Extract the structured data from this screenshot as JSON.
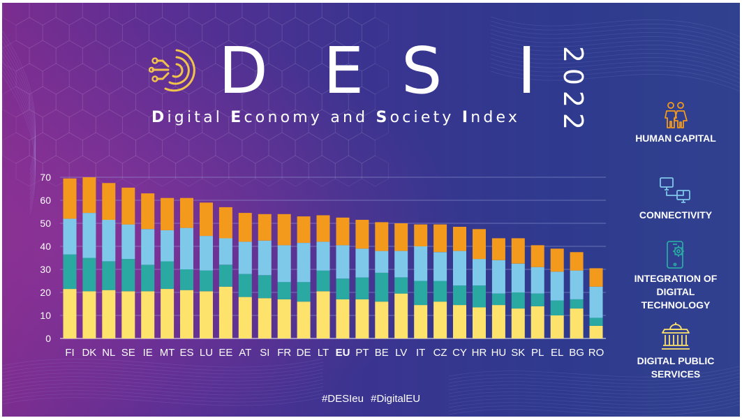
{
  "brand": {
    "logo_letters": [
      "D",
      "E",
      "S",
      "I"
    ],
    "subtitle_parts": [
      {
        "initial": "D",
        "rest": "igital "
      },
      {
        "initial": "E",
        "rest": "conomy and "
      },
      {
        "initial": "S",
        "rest": "ociety "
      },
      {
        "initial": "I",
        "rest": "ndex"
      }
    ],
    "year_digits": [
      "2",
      "0",
      "2",
      "2"
    ],
    "accent_gold": "#f1c34b",
    "logo_icon": "circuit-rings-icon"
  },
  "chart_data": {
    "type": "bar",
    "stacked": true,
    "title": "",
    "xlabel": "",
    "ylabel": "",
    "ylim": [
      0,
      70
    ],
    "yticks": [
      0,
      10,
      20,
      30,
      40,
      50,
      60,
      70
    ],
    "grid": true,
    "legend_position": "right",
    "highlight_category": "EU",
    "categories": [
      "FI",
      "DK",
      "NL",
      "SE",
      "IE",
      "MT",
      "ES",
      "LU",
      "EE",
      "AT",
      "SI",
      "FR",
      "DE",
      "LT",
      "EU",
      "PT",
      "BE",
      "LV",
      "IT",
      "CZ",
      "CY",
      "HR",
      "HU",
      "SK",
      "PL",
      "EL",
      "BG",
      "RO"
    ],
    "series": [
      {
        "name": "HUMAN CAPITAL",
        "color": "#fde26b",
        "values": [
          21.5,
          20.5,
          21.0,
          20.5,
          20.5,
          21.5,
          21.0,
          20.5,
          22.5,
          18.0,
          17.5,
          17.0,
          16.0,
          20.5,
          17.0,
          17.0,
          16.0,
          19.5,
          14.5,
          16.0,
          14.5,
          13.5,
          14.5,
          13.0,
          14.0,
          10.0,
          13.0,
          5.5
        ]
      },
      {
        "name": "CONNECTIVITY",
        "color": "#2aa8a2",
        "values": [
          15.0,
          14.5,
          12.5,
          14.0,
          11.5,
          12.0,
          9.0,
          9.0,
          9.5,
          10.0,
          10.0,
          7.5,
          8.5,
          9.0,
          9.0,
          9.5,
          12.5,
          7.0,
          10.5,
          9.0,
          8.5,
          9.5,
          5.0,
          7.0,
          5.5,
          6.5,
          4.0,
          3.5
        ]
      },
      {
        "name": "INTEGRATION OF DIGITAL TECHNOLOGY",
        "color": "#7ec8ea",
        "values": [
          15.5,
          19.5,
          18.0,
          15.0,
          15.5,
          13.5,
          18.0,
          15.0,
          11.5,
          14.0,
          15.0,
          16.0,
          17.0,
          12.5,
          14.5,
          12.5,
          9.5,
          11.5,
          15.0,
          12.5,
          15.0,
          11.5,
          14.5,
          12.5,
          11.5,
          12.5,
          12.5,
          13.5
        ]
      },
      {
        "name": "DIGITAL PUBLIC SERVICES",
        "color": "#f39a1c",
        "values": [
          17.5,
          15.5,
          16.0,
          16.0,
          15.5,
          14.0,
          13.0,
          14.5,
          13.5,
          12.5,
          11.5,
          13.5,
          11.5,
          11.5,
          12.0,
          12.5,
          12.5,
          12.0,
          9.5,
          12.0,
          10.5,
          13.0,
          9.5,
          11.0,
          9.5,
          10.0,
          8.0,
          8.0
        ]
      }
    ]
  },
  "legend": [
    {
      "label": "HUMAN CAPITAL",
      "icon": "people-icon"
    },
    {
      "label": "CONNECTIVITY",
      "icon": "connected-computers-icon"
    },
    {
      "label": "INTEGRATION OF DIGITAL TECHNOLOGY",
      "icon": "smartphone-gear-icon"
    },
    {
      "label": "DIGITAL PUBLIC SERVICES",
      "icon": "government-building-icon"
    }
  ],
  "footer": {
    "hashtags": [
      "#DESIeu",
      "#DigitalEU"
    ]
  }
}
